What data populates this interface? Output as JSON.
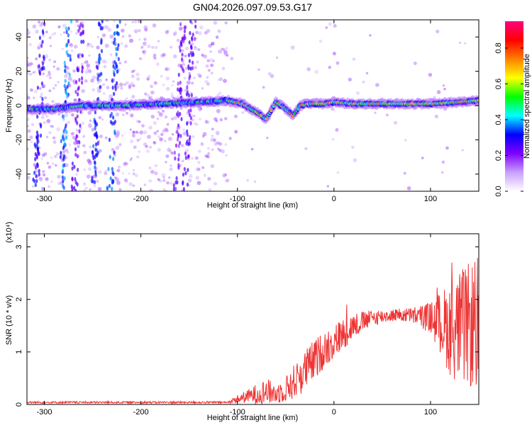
{
  "title": "GN04.2026.097.09.53.G17",
  "chart_data": [
    {
      "type": "heatmap",
      "name": "spectrogram",
      "xlabel": "Height of straight line (km)",
      "ylabel": "Frequency (Hz)",
      "xlim": [
        -318,
        150
      ],
      "ylim": [
        -50,
        50
      ],
      "xticks": [
        -300,
        -200,
        -100,
        0,
        100
      ],
      "yticks": [
        -40,
        -20,
        0,
        20,
        40
      ],
      "colorbar": {
        "label": "Normalized spectral amplitude",
        "range": [
          0,
          0.95
        ],
        "ticks": [
          0.0,
          0.2,
          0.4,
          0.6,
          0.8
        ],
        "colors": [
          "#ffffff",
          "#c8a0ff",
          "#8000ff",
          "#0000ff",
          "#00ffff",
          "#00ff00",
          "#ffff00",
          "#ff8000",
          "#ff0000",
          "#ff0080"
        ]
      },
      "ridge": {
        "x": [
          -318,
          -290,
          -260,
          -220,
          -180,
          -140,
          -110,
          -95,
          -80,
          -70,
          -60,
          -50,
          -42,
          -35,
          -25,
          -10,
          0,
          20,
          60,
          100,
          130,
          150
        ],
        "y": [
          -2,
          -2,
          0,
          0,
          1,
          2,
          3,
          1,
          -4,
          -8,
          2,
          -2,
          -6,
          0,
          1,
          1,
          2,
          1,
          1,
          1,
          2,
          3
        ]
      }
    },
    {
      "type": "line",
      "name": "snr",
      "xlabel": "Height of straight line (km)",
      "ylabel": "SNR (10 * v/v)",
      "yscale_note": "(x10⁴)",
      "xlim": [
        -318,
        150
      ],
      "ylim": [
        0,
        3.25
      ],
      "xticks": [
        -300,
        -200,
        -100,
        0,
        100
      ],
      "yticks": [
        0,
        1,
        2,
        3
      ],
      "color": "#ee3333",
      "envelope": {
        "x": [
          -318,
          -110,
          -100,
          -90,
          -80,
          -70,
          -60,
          -50,
          -40,
          -30,
          -20,
          -10,
          0,
          10,
          20,
          40,
          60,
          80,
          100,
          110,
          120,
          130,
          140,
          150
        ],
        "base": [
          0.04,
          0.04,
          0.1,
          0.15,
          0.2,
          0.25,
          0.2,
          0.3,
          0.45,
          0.65,
          0.85,
          1.05,
          1.2,
          1.35,
          1.5,
          1.65,
          1.7,
          1.7,
          1.65,
          1.55,
          1.45,
          1.45,
          1.5,
          1.55
        ],
        "noise": [
          0.02,
          0.02,
          0.08,
          0.12,
          0.2,
          0.25,
          0.2,
          0.25,
          0.35,
          0.4,
          0.4,
          0.35,
          0.35,
          0.3,
          0.25,
          0.15,
          0.12,
          0.15,
          0.3,
          0.6,
          0.9,
          1.1,
          1.2,
          1.3
        ]
      }
    }
  ]
}
